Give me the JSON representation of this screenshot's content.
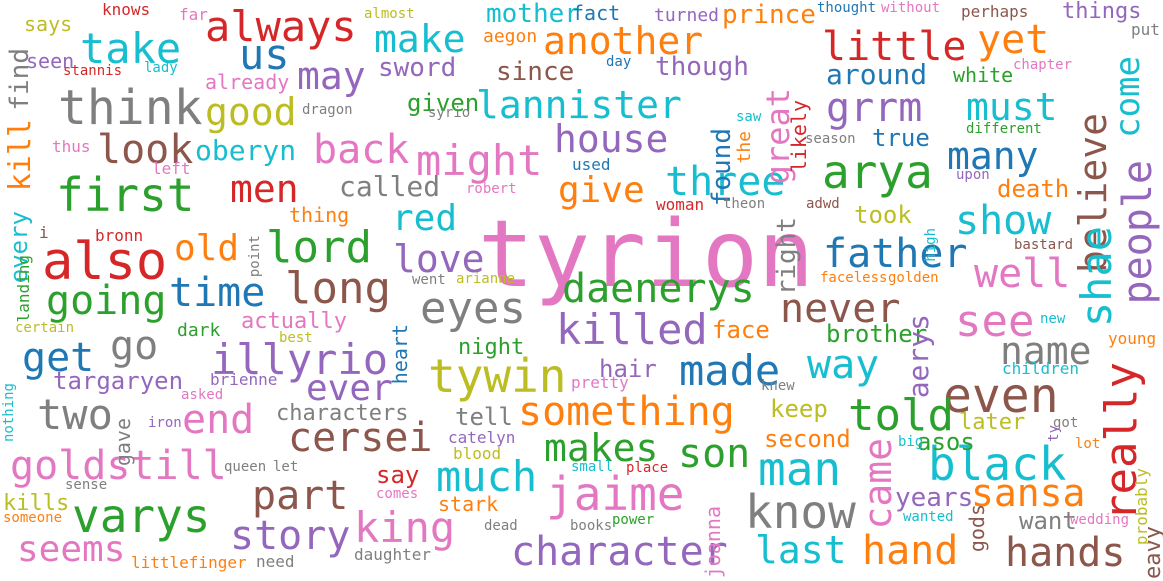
{
  "palette": [
    "#1f77b4",
    "#ff7f0e",
    "#2ca02c",
    "#d62728",
    "#9467bd",
    "#8c564b",
    "#e377c2",
    "#7f7f7f",
    "#bcbd22",
    "#17becf"
  ],
  "words": [
    {
      "text": "tyrion",
      "color": "#e377c2",
      "vertical": false
    },
    {
      "text": "also",
      "color": "#d62728",
      "vertical": false
    },
    {
      "text": "first",
      "color": "#2ca02c",
      "vertical": false
    },
    {
      "text": "think",
      "color": "#7f7f7f",
      "vertical": false
    },
    {
      "text": "varys",
      "color": "#2ca02c",
      "vertical": false
    },
    {
      "text": "goldstill",
      "color": "#e377c2",
      "vertical": false
    },
    {
      "text": "always",
      "color": "#d62728",
      "vertical": false
    },
    {
      "text": "take",
      "color": "#17becf",
      "vertical": false
    },
    {
      "text": "us",
      "color": "#1f77b4",
      "vertical": false
    },
    {
      "text": "good",
      "color": "#bcbd22",
      "vertical": false
    },
    {
      "text": "lannister",
      "color": "#17becf",
      "vertical": false
    },
    {
      "text": "another",
      "color": "#ff7f0e",
      "vertical": false
    },
    {
      "text": "little",
      "color": "#d62728",
      "vertical": false
    },
    {
      "text": "yet",
      "color": "#ff7f0e",
      "vertical": false
    },
    {
      "text": "make",
      "color": "#17becf",
      "vertical": false
    },
    {
      "text": "may",
      "color": "#9467bd",
      "vertical": false
    },
    {
      "text": "arya",
      "color": "#2ca02c",
      "vertical": false
    },
    {
      "text": "grrm",
      "color": "#9467bd",
      "vertical": false
    },
    {
      "text": "must",
      "color": "#17becf",
      "vertical": false
    },
    {
      "text": "might",
      "color": "#e377c2",
      "vertical": false
    },
    {
      "text": "back",
      "color": "#e377c2",
      "vertical": false
    },
    {
      "text": "look",
      "color": "#8c564b",
      "vertical": false
    },
    {
      "text": "three",
      "color": "#17becf",
      "vertical": false
    },
    {
      "text": "house",
      "color": "#9467bd",
      "vertical": false
    },
    {
      "text": "men",
      "color": "#d62728",
      "vertical": false
    },
    {
      "text": "lord",
      "color": "#2ca02c",
      "vertical": false
    },
    {
      "text": "going",
      "color": "#2ca02c",
      "vertical": false
    },
    {
      "text": "time",
      "color": "#1f77b4",
      "vertical": false
    },
    {
      "text": "long",
      "color": "#8c564b",
      "vertical": false
    },
    {
      "text": "daenerys",
      "color": "#2ca02c",
      "vertical": false
    },
    {
      "text": "killed",
      "color": "#9467bd",
      "vertical": false
    },
    {
      "text": "eyes",
      "color": "#7f7f7f",
      "vertical": false
    },
    {
      "text": "tywin",
      "color": "#bcbd22",
      "vertical": false
    },
    {
      "text": "illyrio",
      "color": "#9467bd",
      "vertical": false
    },
    {
      "text": "father",
      "color": "#1f77b4",
      "vertical": false
    },
    {
      "text": "show",
      "color": "#17becf",
      "vertical": false
    },
    {
      "text": "many",
      "color": "#1f77b4",
      "vertical": false
    },
    {
      "text": "well",
      "color": "#e377c2",
      "vertical": false
    },
    {
      "text": "see",
      "color": "#e377c2",
      "vertical": false
    },
    {
      "text": "name",
      "color": "#7f7f7f",
      "vertical": false
    },
    {
      "text": "even",
      "color": "#8c564b",
      "vertical": false
    },
    {
      "text": "black",
      "color": "#17becf",
      "vertical": false
    },
    {
      "text": "man",
      "color": "#17becf",
      "vertical": false
    },
    {
      "text": "know",
      "color": "#7f7f7f",
      "vertical": false
    },
    {
      "text": "hand",
      "color": "#ff7f0e",
      "vertical": false
    },
    {
      "text": "hands",
      "color": "#8c564b",
      "vertical": false
    },
    {
      "text": "sansa",
      "color": "#ff7f0e",
      "vertical": false
    },
    {
      "text": "character",
      "color": "#9467bd",
      "vertical": false
    },
    {
      "text": "jaime",
      "color": "#e377c2",
      "vertical": false
    },
    {
      "text": "something",
      "color": "#ff7f0e",
      "vertical": false
    },
    {
      "text": "made",
      "color": "#1f77b4",
      "vertical": false
    },
    {
      "text": "way",
      "color": "#17becf",
      "vertical": false
    },
    {
      "text": "never",
      "color": "#8c564b",
      "vertical": false
    },
    {
      "text": "told",
      "color": "#2ca02c",
      "vertical": false
    },
    {
      "text": "cersei",
      "color": "#8c564b",
      "vertical": false
    },
    {
      "text": "much",
      "color": "#17becf",
      "vertical": false
    },
    {
      "text": "makes",
      "color": "#2ca02c",
      "vertical": false
    },
    {
      "text": "son",
      "color": "#2ca02c",
      "vertical": false
    },
    {
      "text": "king",
      "color": "#e377c2",
      "vertical": false
    },
    {
      "text": "story",
      "color": "#9467bd",
      "vertical": false
    },
    {
      "text": "part",
      "color": "#8c564b",
      "vertical": false
    },
    {
      "text": "seems",
      "color": "#e377c2",
      "vertical": false
    },
    {
      "text": "two",
      "color": "#7f7f7f",
      "vertical": false
    },
    {
      "text": "end",
      "color": "#e377c2",
      "vertical": false
    },
    {
      "text": "get",
      "color": "#1f77b4",
      "vertical": false
    },
    {
      "text": "go",
      "color": "#7f7f7f",
      "vertical": false
    },
    {
      "text": "ever",
      "color": "#9467bd",
      "vertical": false
    },
    {
      "text": "targaryen",
      "color": "#9467bd",
      "vertical": false
    },
    {
      "text": "love",
      "color": "#9467bd",
      "vertical": false
    },
    {
      "text": "red",
      "color": "#17becf",
      "vertical": false
    },
    {
      "text": "give",
      "color": "#ff7f0e",
      "vertical": false
    },
    {
      "text": "old",
      "color": "#ff7f0e",
      "vertical": false
    },
    {
      "text": "oberyn",
      "color": "#17becf",
      "vertical": false
    },
    {
      "text": "called",
      "color": "#7f7f7f",
      "vertical": false
    },
    {
      "text": "sword",
      "color": "#9467bd",
      "vertical": false
    },
    {
      "text": "since",
      "color": "#8c564b",
      "vertical": false
    },
    {
      "text": "given",
      "color": "#2ca02c",
      "vertical": false
    },
    {
      "text": "though",
      "color": "#9467bd",
      "vertical": false
    },
    {
      "text": "around",
      "color": "#1f77b4",
      "vertical": false
    },
    {
      "text": "prince",
      "color": "#ff7f0e",
      "vertical": false
    },
    {
      "text": "mother",
      "color": "#17becf",
      "vertical": false
    },
    {
      "text": "fact",
      "color": "#1f77b4",
      "vertical": false
    },
    {
      "text": "things",
      "color": "#9467bd",
      "vertical": false
    },
    {
      "text": "true",
      "color": "#1f77b4",
      "vertical": false
    },
    {
      "text": "white",
      "color": "#2ca02c",
      "vertical": false
    },
    {
      "text": "took",
      "color": "#bcbd22",
      "vertical": false
    },
    {
      "text": "death",
      "color": "#ff7f0e",
      "vertical": false
    },
    {
      "text": "brother",
      "color": "#2ca02c",
      "vertical": false
    },
    {
      "text": "face",
      "color": "#ff7f0e",
      "vertical": false
    },
    {
      "text": "hair",
      "color": "#9467bd",
      "vertical": false
    },
    {
      "text": "tell",
      "color": "#7f7f7f",
      "vertical": false
    },
    {
      "text": "keep",
      "color": "#bcbd22",
      "vertical": false
    },
    {
      "text": "second",
      "color": "#ff7f0e",
      "vertical": false
    },
    {
      "text": "say",
      "color": "#d62728",
      "vertical": false
    },
    {
      "text": "stark",
      "color": "#ff7f0e",
      "vertical": false
    },
    {
      "text": "years",
      "color": "#9467bd",
      "vertical": false
    },
    {
      "text": "want",
      "color": "#7f7f7f",
      "vertical": false
    },
    {
      "text": "last",
      "color": "#17becf",
      "vertical": false
    },
    {
      "text": "asos",
      "color": "#2ca02c",
      "vertical": false
    },
    {
      "text": "later",
      "color": "#bcbd22",
      "vertical": false
    },
    {
      "text": "actually",
      "color": "#e377c2",
      "vertical": false
    },
    {
      "text": "night",
      "color": "#2ca02c",
      "vertical": false
    },
    {
      "text": "characters",
      "color": "#7f7f7f",
      "vertical": false
    },
    {
      "text": "found",
      "color": "#1f77b4",
      "vertical": true
    },
    {
      "text": "great",
      "color": "#e377c2",
      "vertical": true
    },
    {
      "text": "likely",
      "color": "#d62728",
      "vertical": true
    },
    {
      "text": "right",
      "color": "#7f7f7f",
      "vertical": true
    },
    {
      "text": "believe",
      "color": "#8c564b",
      "vertical": true
    },
    {
      "text": "come",
      "color": "#17becf",
      "vertical": true
    },
    {
      "text": "people",
      "color": "#9467bd",
      "vertical": true
    },
    {
      "text": "shae",
      "color": "#17becf",
      "vertical": true
    },
    {
      "text": "really",
      "color": "#d62728",
      "vertical": true
    },
    {
      "text": "aerys",
      "color": "#9467bd",
      "vertical": true
    },
    {
      "text": "came",
      "color": "#e377c2",
      "vertical": true
    },
    {
      "text": "kill",
      "color": "#ff7f0e",
      "vertical": true
    },
    {
      "text": "find",
      "color": "#7f7f7f",
      "vertical": true
    },
    {
      "text": "every",
      "color": "#17becf",
      "vertical": true
    },
    {
      "text": "heart",
      "color": "#1f77b4",
      "vertical": true
    },
    {
      "text": "the",
      "color": "#ff7f0e",
      "vertical": true
    },
    {
      "text": "joanna",
      "color": "#e377c2",
      "vertical": true
    },
    {
      "text": "gods",
      "color": "#8c564b",
      "vertical": true
    },
    {
      "text": "gave",
      "color": "#7f7f7f",
      "vertical": true
    },
    {
      "text": "landing",
      "color": "#2ca02c",
      "vertical": true
    },
    {
      "text": "nothing",
      "color": "#17becf",
      "vertical": true
    },
    {
      "text": "probably",
      "color": "#bcbd22",
      "vertical": true
    },
    {
      "text": "point",
      "color": "#7f7f7f",
      "vertical": true
    },
    {
      "text": "high",
      "color": "#17becf",
      "vertical": true
    },
    {
      "text": "ty",
      "color": "#9467bd",
      "vertical": true
    },
    {
      "text": "heavy",
      "color": "#8c564b",
      "vertical": true
    },
    {
      "text": "says",
      "color": "#bcbd22",
      "vertical": false
    },
    {
      "text": "knows",
      "color": "#d62728",
      "vertical": false
    },
    {
      "text": "far",
      "color": "#e377c2",
      "vertical": false
    },
    {
      "text": "almost",
      "color": "#bcbd22",
      "vertical": false
    },
    {
      "text": "aegon",
      "color": "#ff7f0e",
      "vertical": false
    },
    {
      "text": "turned",
      "color": "#9467bd",
      "vertical": false
    },
    {
      "text": "thought",
      "color": "#1f77b4",
      "vertical": false
    },
    {
      "text": "without",
      "color": "#e377c2",
      "vertical": false
    },
    {
      "text": "perhaps",
      "color": "#8c564b",
      "vertical": false
    },
    {
      "text": "put",
      "color": "#7f7f7f",
      "vertical": false
    },
    {
      "text": "seen",
      "color": "#9467bd",
      "vertical": false
    },
    {
      "text": "stannis",
      "color": "#d62728",
      "vertical": false
    },
    {
      "text": "lady",
      "color": "#17becf",
      "vertical": false
    },
    {
      "text": "already",
      "color": "#e377c2",
      "vertical": false
    },
    {
      "text": "day",
      "color": "#1f77b4",
      "vertical": false
    },
    {
      "text": "chapter",
      "color": "#e377c2",
      "vertical": false
    },
    {
      "text": "dragon",
      "color": "#7f7f7f",
      "vertical": false
    },
    {
      "text": "syrio",
      "color": "#7f7f7f",
      "vertical": false
    },
    {
      "text": "saw",
      "color": "#17becf",
      "vertical": false
    },
    {
      "text": "season",
      "color": "#7f7f7f",
      "vertical": false
    },
    {
      "text": "different",
      "color": "#2ca02c",
      "vertical": false
    },
    {
      "text": "thus",
      "color": "#e377c2",
      "vertical": false
    },
    {
      "text": "left",
      "color": "#e377c2",
      "vertical": false
    },
    {
      "text": "used",
      "color": "#1f77b4",
      "vertical": false
    },
    {
      "text": "upon",
      "color": "#9467bd",
      "vertical": false
    },
    {
      "text": "robert",
      "color": "#e377c2",
      "vertical": false
    },
    {
      "text": "woman",
      "color": "#d62728",
      "vertical": false
    },
    {
      "text": "theon",
      "color": "#7f7f7f",
      "vertical": false
    },
    {
      "text": "adwd",
      "color": "#8c564b",
      "vertical": false
    },
    {
      "text": "thing",
      "color": "#ff7f0e",
      "vertical": false
    },
    {
      "text": "i",
      "color": "#8c564b",
      "vertical": false
    },
    {
      "text": "bronn",
      "color": "#d62728",
      "vertical": false
    },
    {
      "text": "bastard",
      "color": "#8c564b",
      "vertical": false
    },
    {
      "text": "went",
      "color": "#7f7f7f",
      "vertical": false
    },
    {
      "text": "arianne",
      "color": "#bcbd22",
      "vertical": false
    },
    {
      "text": "faceless",
      "color": "#ff7f0e",
      "vertical": false
    },
    {
      "text": "golden",
      "color": "#ff7f0e",
      "vertical": false
    },
    {
      "text": "certain",
      "color": "#bcbd22",
      "vertical": false
    },
    {
      "text": "best",
      "color": "#bcbd22",
      "vertical": false
    },
    {
      "text": "dark",
      "color": "#2ca02c",
      "vertical": false
    },
    {
      "text": "new",
      "color": "#17becf",
      "vertical": false
    },
    {
      "text": "young",
      "color": "#ff7f0e",
      "vertical": false
    },
    {
      "text": "brienne",
      "color": "#9467bd",
      "vertical": false
    },
    {
      "text": "asked",
      "color": "#e377c2",
      "vertical": false
    },
    {
      "text": "pretty",
      "color": "#e377c2",
      "vertical": false
    },
    {
      "text": "knew",
      "color": "#7f7f7f",
      "vertical": false
    },
    {
      "text": "children",
      "color": "#17becf",
      "vertical": false
    },
    {
      "text": "iron",
      "color": "#9467bd",
      "vertical": false
    },
    {
      "text": "catelyn",
      "color": "#9467bd",
      "vertical": false
    },
    {
      "text": "big",
      "color": "#17becf",
      "vertical": false
    },
    {
      "text": "got",
      "color": "#7f7f7f",
      "vertical": false
    },
    {
      "text": "lot",
      "color": "#ff7f0e",
      "vertical": false
    },
    {
      "text": "queen",
      "color": "#7f7f7f",
      "vertical": false
    },
    {
      "text": "let",
      "color": "#7f7f7f",
      "vertical": false
    },
    {
      "text": "blood",
      "color": "#bcbd22",
      "vertical": false
    },
    {
      "text": "small",
      "color": "#17becf",
      "vertical": false
    },
    {
      "text": "place",
      "color": "#d62728",
      "vertical": false
    },
    {
      "text": "sense",
      "color": "#7f7f7f",
      "vertical": false
    },
    {
      "text": "comes",
      "color": "#e377c2",
      "vertical": false
    },
    {
      "text": "kills",
      "color": "#bcbd22",
      "vertical": false
    },
    {
      "text": "someone",
      "color": "#ff7f0e",
      "vertical": false
    },
    {
      "text": "dead",
      "color": "#7f7f7f",
      "vertical": false
    },
    {
      "text": "books",
      "color": "#7f7f7f",
      "vertical": false
    },
    {
      "text": "power",
      "color": "#2ca02c",
      "vertical": false
    },
    {
      "text": "wanted",
      "color": "#17becf",
      "vertical": false
    },
    {
      "text": "littlefinger",
      "color": "#ff7f0e",
      "vertical": false
    },
    {
      "text": "need",
      "color": "#7f7f7f",
      "vertical": false
    },
    {
      "text": "daughter",
      "color": "#7f7f7f",
      "vertical": false
    },
    {
      "text": "wedding",
      "color": "#e377c2",
      "vertical": false
    }
  ]
}
